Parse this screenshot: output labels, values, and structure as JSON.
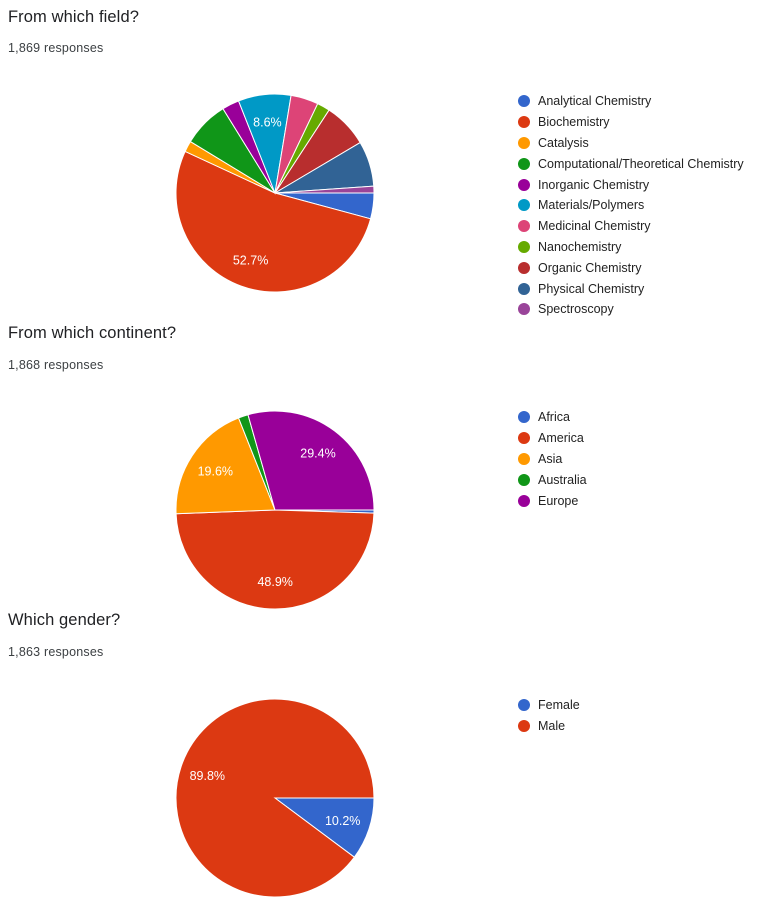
{
  "chart_data": [
    {
      "type": "pie",
      "title": "From which field?",
      "subtitle": "1,869 responses",
      "responses": 1869,
      "start_angle_deg": 0,
      "direction": "clockwise",
      "legend_position": "right",
      "categories": [
        "Analytical Chemistry",
        "Biochemistry",
        "Catalysis",
        "Computational/Theoretical Chemistry",
        "Inorganic Chemistry",
        "Materials/Polymers",
        "Medicinal Chemistry",
        "Nanochemistry",
        "Organic Chemistry",
        "Physical Chemistry",
        "Spectroscopy"
      ],
      "values": [
        4.2,
        52.7,
        1.8,
        7.5,
        2.8,
        8.6,
        4.5,
        2.1,
        7.3,
        7.4,
        1.1
      ],
      "colors": [
        "#3366cc",
        "#dc3912",
        "#ff9900",
        "#109618",
        "#990099",
        "#0099c6",
        "#dd4477",
        "#66aa00",
        "#b82e2e",
        "#316395",
        "#994499"
      ],
      "labeled_slices": {
        "Biochemistry": "52.7%",
        "Materials/Polymers": "8.6%"
      }
    },
    {
      "type": "pie",
      "title": "From which continent?",
      "subtitle": "1,868 responses",
      "responses": 1868,
      "start_angle_deg": 0,
      "direction": "clockwise",
      "legend_position": "right",
      "categories": [
        "Africa",
        "America",
        "Asia",
        "Australia",
        "Europe"
      ],
      "values": [
        0.5,
        48.9,
        19.6,
        1.6,
        29.4
      ],
      "colors": [
        "#3366cc",
        "#dc3912",
        "#ff9900",
        "#109618",
        "#990099"
      ],
      "labeled_slices": {
        "America": "48.9%",
        "Asia": "19.6%",
        "Europe": "29.4%"
      }
    },
    {
      "type": "pie",
      "title": "Which gender?",
      "subtitle": "1,863 responses",
      "responses": 1863,
      "start_angle_deg": 0,
      "direction": "clockwise",
      "legend_position": "right",
      "categories": [
        "Female",
        "Male"
      ],
      "values": [
        10.2,
        89.8
      ],
      "colors": [
        "#3366cc",
        "#dc3912"
      ],
      "labeled_slices": {
        "Female": "10.2%",
        "Male": "89.8%"
      }
    }
  ],
  "sections": [
    {
      "title": "From which field?",
      "count": "1,869 responses",
      "legend": [
        {
          "label": "Analytical Chemistry",
          "color": "#3366cc"
        },
        {
          "label": "Biochemistry",
          "color": "#dc3912"
        },
        {
          "label": "Catalysis",
          "color": "#ff9900"
        },
        {
          "label": "Computational/Theoretical Chemistry",
          "color": "#109618"
        },
        {
          "label": "Inorganic Chemistry",
          "color": "#990099"
        },
        {
          "label": "Materials/Polymers",
          "color": "#0099c6"
        },
        {
          "label": "Medicinal Chemistry",
          "color": "#dd4477"
        },
        {
          "label": "Nanochemistry",
          "color": "#66aa00"
        },
        {
          "label": "Organic Chemistry",
          "color": "#b82e2e"
        },
        {
          "label": "Physical Chemistry",
          "color": "#316395"
        },
        {
          "label": "Spectroscopy",
          "color": "#994499"
        }
      ]
    },
    {
      "title": "From which continent?",
      "count": "1,868 responses",
      "legend": [
        {
          "label": "Africa",
          "color": "#3366cc"
        },
        {
          "label": "America",
          "color": "#dc3912"
        },
        {
          "label": "Asia",
          "color": "#ff9900"
        },
        {
          "label": "Australia",
          "color": "#109618"
        },
        {
          "label": "Europe",
          "color": "#990099"
        }
      ]
    },
    {
      "title": "Which gender?",
      "count": "1,863 responses",
      "legend": [
        {
          "label": "Female",
          "color": "#3366cc"
        },
        {
          "label": "Male",
          "color": "#dc3912"
        }
      ]
    }
  ]
}
